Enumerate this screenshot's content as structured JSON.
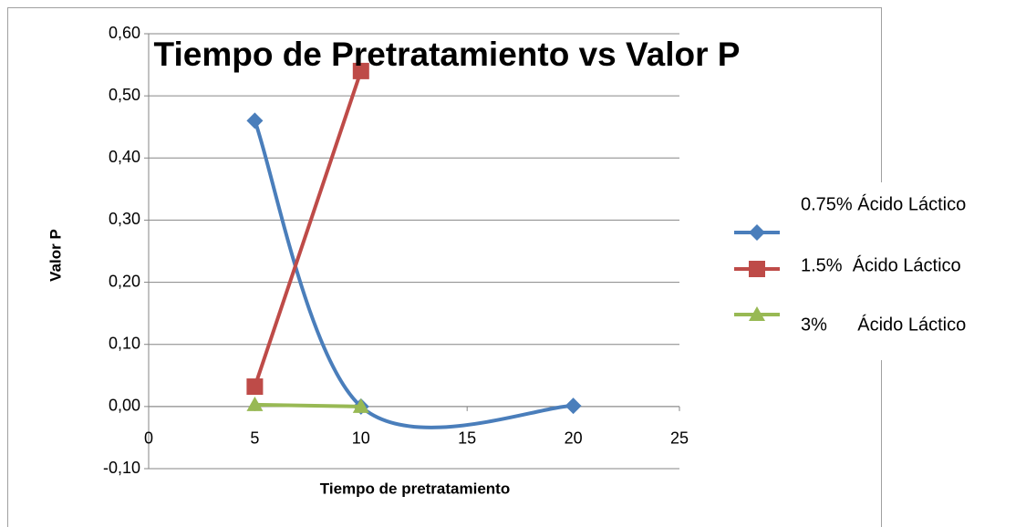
{
  "chart_data": {
    "type": "line",
    "title": "Tiempo de Pretratamiento vs Valor P",
    "xlabel": "Tiempo de pretratamiento",
    "ylabel": "Valor P",
    "smooth": true,
    "grid": true,
    "legend": "right",
    "xlim": [
      0,
      25
    ],
    "xticks": [
      0,
      5,
      10,
      15,
      20,
      25
    ],
    "ylim": [
      -0.1,
      0.6
    ],
    "yticks": [
      {
        "value": -0.1,
        "label": "-0,10"
      },
      {
        "value": 0,
        "label": "0,00"
      },
      {
        "value": 0.1,
        "label": "0,10"
      },
      {
        "value": 0.2,
        "label": "0,20"
      },
      {
        "value": 0.3,
        "label": "0,30"
      },
      {
        "value": 0.4,
        "label": "0,40"
      },
      {
        "value": 0.5,
        "label": "0,50"
      },
      {
        "value": 0.6,
        "label": "0,60"
      }
    ],
    "series": [
      {
        "name": "0.75% Ácido Láctico",
        "color": "#4a7ebb",
        "marker": "diamond",
        "x": [
          5,
          10,
          20
        ],
        "values": [
          0.46,
          0.0,
          0.001
        ]
      },
      {
        "name": "1.5%  Ácido Láctico",
        "color": "#be4b48",
        "marker": "square",
        "x": [
          5,
          10
        ],
        "values": [
          0.032,
          0.54
        ]
      },
      {
        "name": "3%      Ácido Láctico",
        "color": "#98b954",
        "marker": "triangle",
        "x": [
          5,
          10
        ],
        "values": [
          0.003,
          0.0
        ]
      }
    ]
  }
}
